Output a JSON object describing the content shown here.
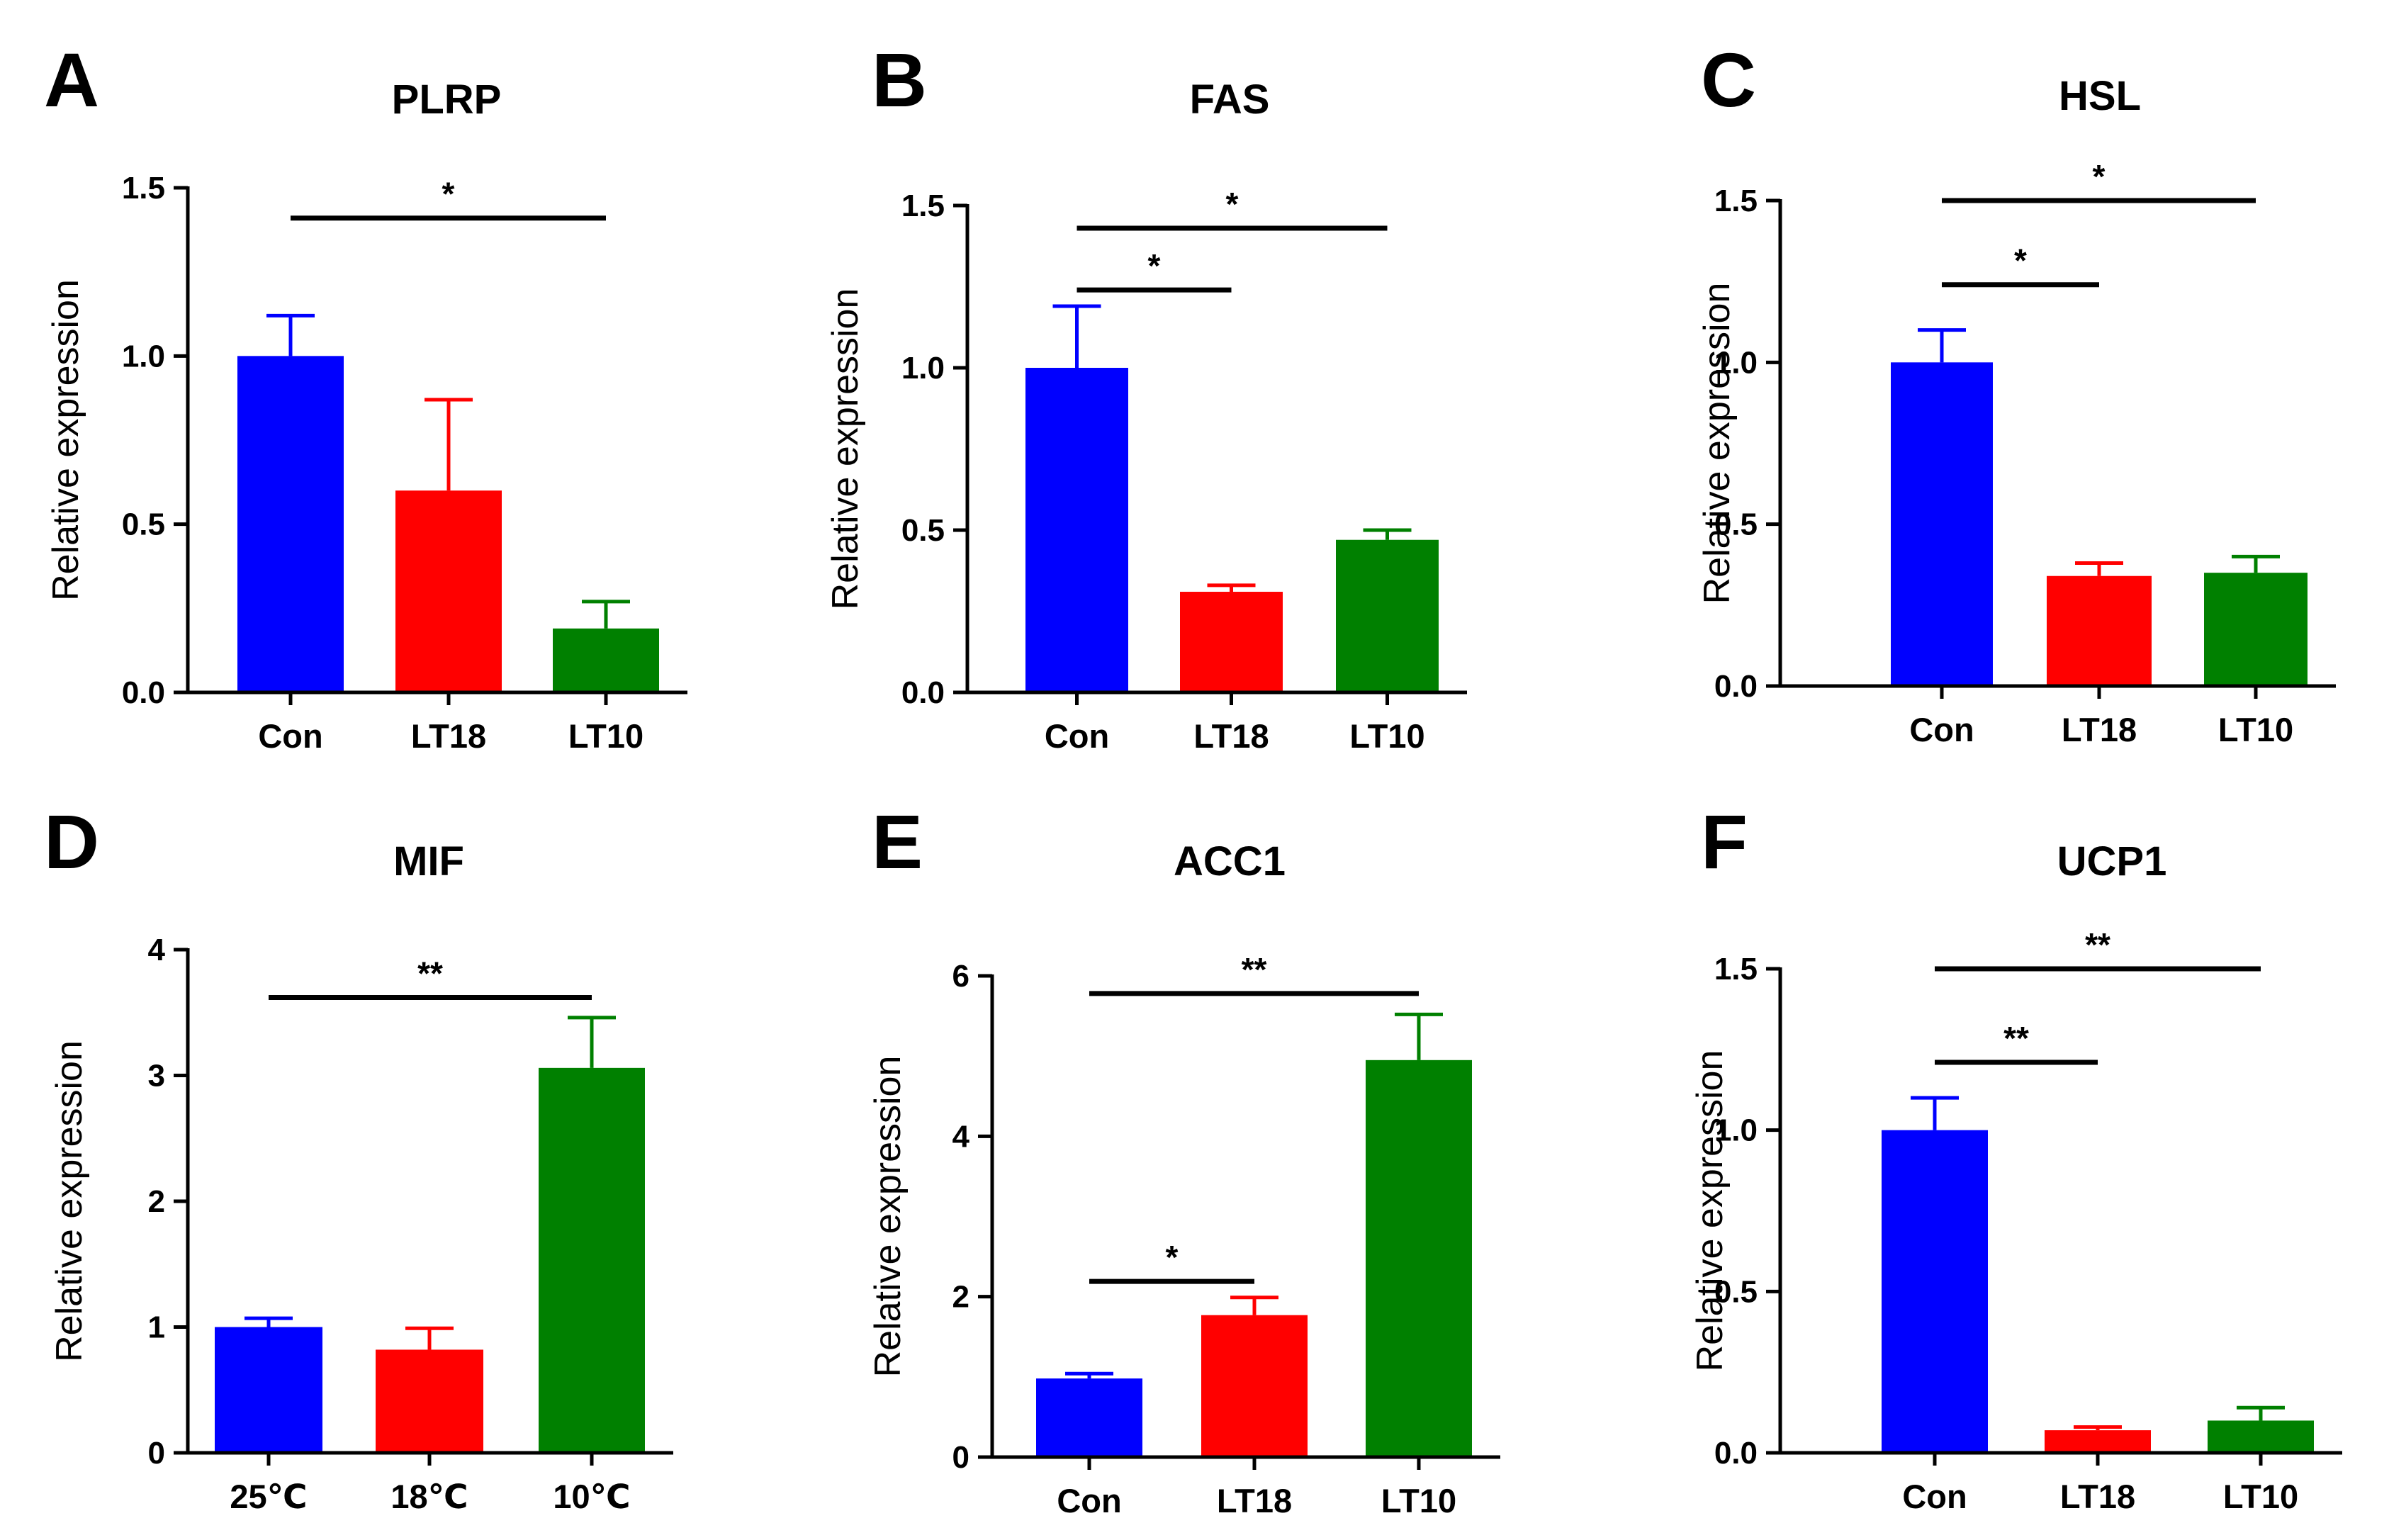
{
  "colors": {
    "blue": "#0000ff",
    "red": "#ff0000",
    "green": "#008000",
    "axis": "#000000"
  },
  "chart_data": [
    {
      "type": "bar",
      "panel": "A",
      "title": "PLRP",
      "ylabel": "Relative expression",
      "xlabel": "",
      "ylim": [
        0,
        1.5
      ],
      "yticks": [
        0.0,
        0.5,
        1.0,
        1.5
      ],
      "ytick_labels": [
        "0.0",
        "0.5",
        "1.0",
        "1.5"
      ],
      "categories": [
        "Con",
        "LT18",
        "LT10"
      ],
      "values": [
        1.0,
        0.6,
        0.19
      ],
      "errors": [
        0.12,
        0.27,
        0.08
      ],
      "colors": [
        "#0000ff",
        "#ff0000",
        "#008000"
      ],
      "significance": [
        {
          "from": 0,
          "to": 2,
          "label": "*",
          "y": 1.41
        }
      ]
    },
    {
      "type": "bar",
      "panel": "B",
      "title": "FAS",
      "ylabel": "Relative expression",
      "xlabel": "",
      "ylim": [
        0,
        1.5
      ],
      "yticks": [
        0.0,
        0.5,
        1.0,
        1.5
      ],
      "ytick_labels": [
        "0.0",
        "0.5",
        "1.0",
        "1.5"
      ],
      "categories": [
        "Con",
        "LT18",
        "LT10"
      ],
      "values": [
        1.0,
        0.31,
        0.47
      ],
      "errors": [
        0.19,
        0.02,
        0.03
      ],
      "colors": [
        "#0000ff",
        "#ff0000",
        "#008000"
      ],
      "significance": [
        {
          "from": 0,
          "to": 1,
          "label": "*",
          "y": 1.24
        },
        {
          "from": 0,
          "to": 2,
          "label": "*",
          "y": 1.43
        }
      ]
    },
    {
      "type": "bar",
      "panel": "C",
      "title": "HSL",
      "ylabel": "Relative expression",
      "xlabel": "",
      "ylim": [
        0,
        1.5
      ],
      "yticks": [
        0.0,
        0.5,
        1.0,
        1.5
      ],
      "ytick_labels": [
        "0.0",
        "0.5",
        "1.0",
        "1.5"
      ],
      "categories": [
        "Con",
        "LT18",
        "LT10"
      ],
      "values": [
        1.0,
        0.34,
        0.35
      ],
      "errors": [
        0.1,
        0.04,
        0.05
      ],
      "colors": [
        "#0000ff",
        "#ff0000",
        "#008000"
      ],
      "significance": [
        {
          "from": 0,
          "to": 1,
          "label": "*",
          "y": 1.24
        },
        {
          "from": 0,
          "to": 2,
          "label": "*",
          "y": 1.5
        }
      ]
    },
    {
      "type": "bar",
      "panel": "D",
      "title": "MIF",
      "ylabel": "Relative expression",
      "xlabel": "",
      "ylim": [
        0,
        4
      ],
      "yticks": [
        0,
        1,
        2,
        3,
        4
      ],
      "ytick_labels": [
        "0",
        "1",
        "2",
        "3",
        "4"
      ],
      "categories": [
        "25℃",
        "18℃",
        "10℃"
      ],
      "values": [
        1.0,
        0.82,
        3.06
      ],
      "errors": [
        0.07,
        0.17,
        0.4
      ],
      "colors": [
        "#0000ff",
        "#ff0000",
        "#008000"
      ],
      "significance": [
        {
          "from": 0,
          "to": 2,
          "label": "**",
          "y": 3.62
        }
      ]
    },
    {
      "type": "bar",
      "panel": "E",
      "title": "ACC1",
      "ylabel": "Relative expression",
      "xlabel": "",
      "ylim": [
        0,
        6
      ],
      "yticks": [
        0,
        2,
        4,
        6
      ],
      "ytick_labels": [
        "0",
        "2",
        "4",
        "6"
      ],
      "categories": [
        "Con",
        "LT18",
        "LT10"
      ],
      "values": [
        0.98,
        1.77,
        4.95
      ],
      "errors": [
        0.06,
        0.22,
        0.57
      ],
      "colors": [
        "#0000ff",
        "#ff0000",
        "#008000"
      ],
      "significance": [
        {
          "from": 0,
          "to": 1,
          "label": "*",
          "y": 2.19
        },
        {
          "from": 0,
          "to": 2,
          "label": "**",
          "y": 5.78
        }
      ]
    },
    {
      "type": "bar",
      "panel": "F",
      "title": "UCP1",
      "ylabel": "Relative expression",
      "xlabel": "",
      "ylim": [
        0,
        1.5
      ],
      "yticks": [
        0.0,
        0.5,
        1.0,
        1.5
      ],
      "ytick_labels": [
        "0.0",
        "0.5",
        "1.0",
        "1.5"
      ],
      "categories": [
        "Con",
        "LT18",
        "LT10"
      ],
      "values": [
        1.0,
        0.07,
        0.1
      ],
      "errors": [
        0.1,
        0.01,
        0.04
      ],
      "colors": [
        "#0000ff",
        "#ff0000",
        "#008000"
      ],
      "significance": [
        {
          "from": 0,
          "to": 1,
          "label": "**",
          "y": 1.21
        },
        {
          "from": 0,
          "to": 2,
          "label": "**",
          "y": 1.5
        }
      ]
    }
  ]
}
